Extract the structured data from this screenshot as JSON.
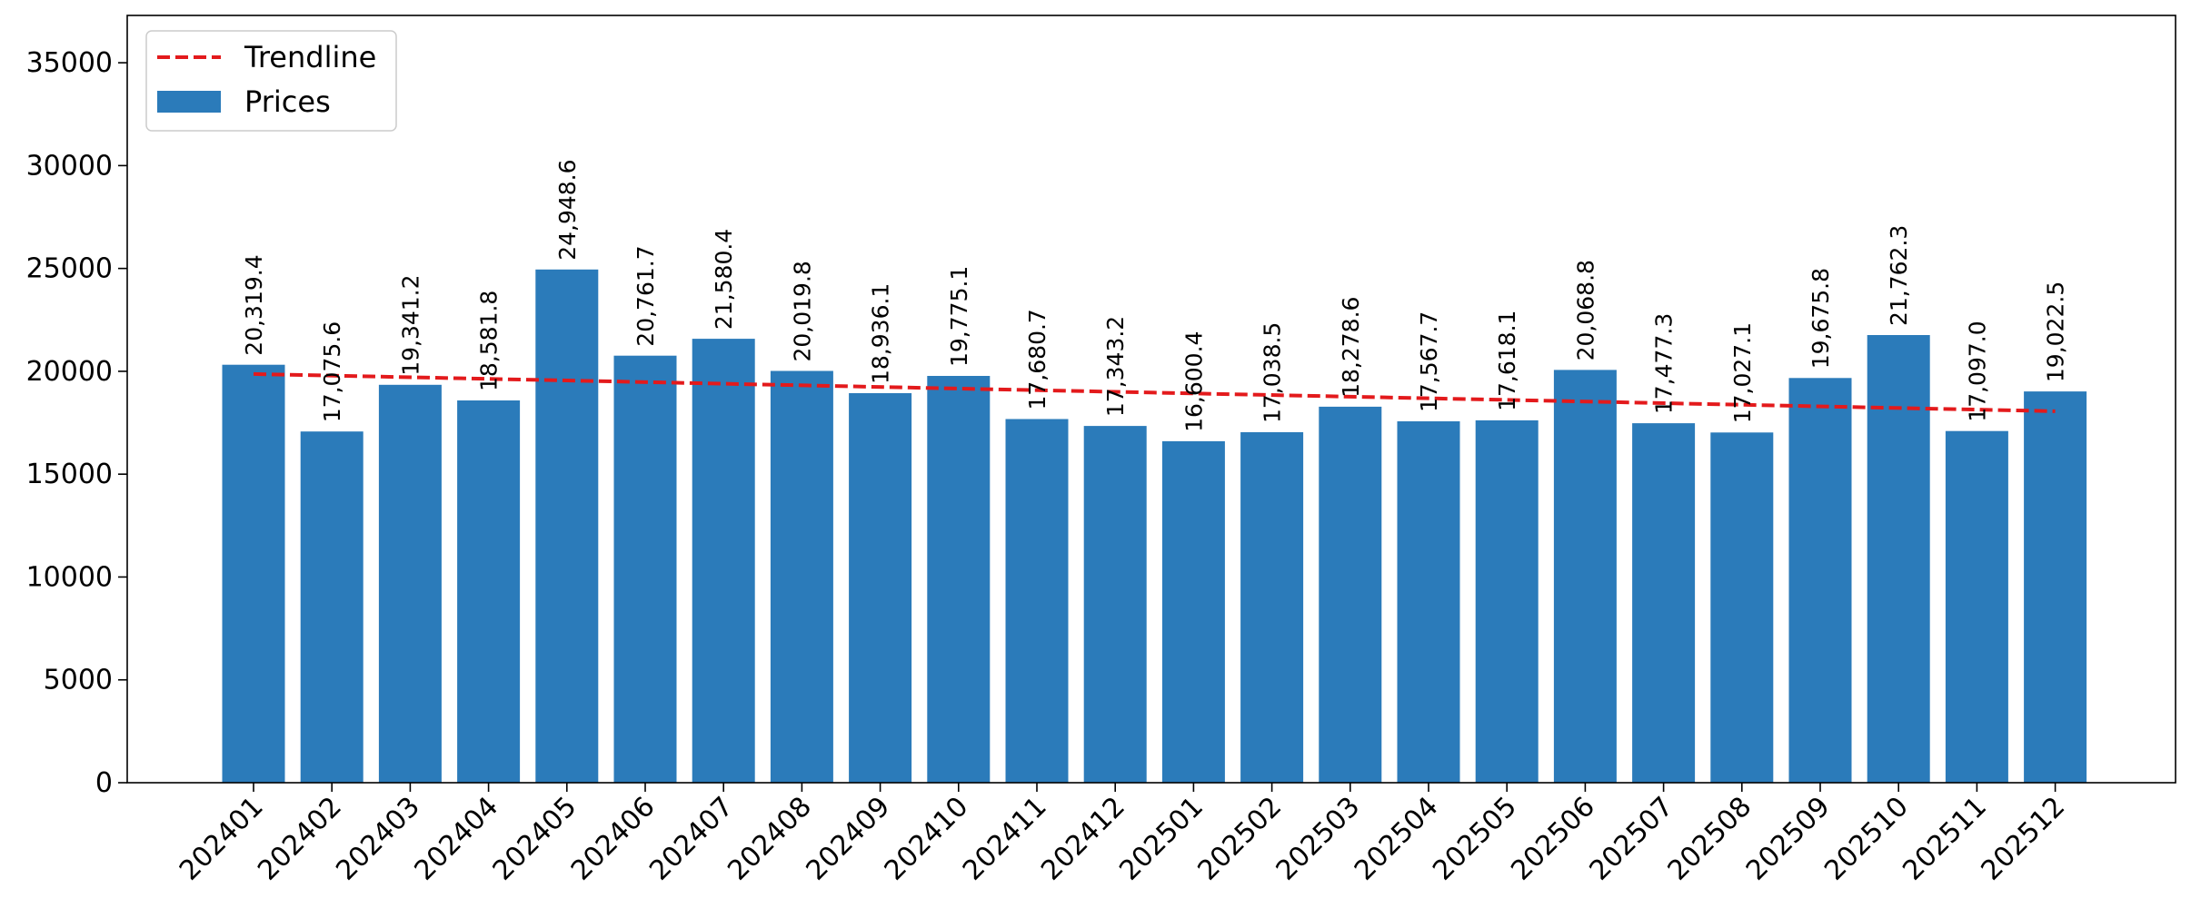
{
  "chart_data": {
    "type": "bar",
    "title": "",
    "xlabel": "",
    "ylabel": "",
    "categories": [
      "202401",
      "202402",
      "202403",
      "202404",
      "202405",
      "202406",
      "202407",
      "202408",
      "202409",
      "202410",
      "202411",
      "202412",
      "202501",
      "202502",
      "202503",
      "202504",
      "202505",
      "202506",
      "202507",
      "202508",
      "202509",
      "202510",
      "202511",
      "202512"
    ],
    "series": [
      {
        "name": "Prices",
        "color": "#2b7bba",
        "values": [
          20319.4,
          17075.6,
          19341.2,
          18581.8,
          24948.6,
          20761.7,
          21580.4,
          20019.8,
          18936.1,
          19775.1,
          17680.7,
          17343.2,
          16600.4,
          17038.5,
          18278.6,
          17567.7,
          17618.1,
          20068.8,
          17477.3,
          17027.1,
          19675.8,
          21762.3,
          17097.0,
          19022.5
        ],
        "data_labels": [
          "20,319.4",
          "17,075.6",
          "19,341.2",
          "18,581.8",
          "24,948.6",
          "20,761.7",
          "21,580.4",
          "20,019.8",
          "18,936.1",
          "19,775.1",
          "17,680.7",
          "17,343.2",
          "16,600.4",
          "17,038.5",
          "18,278.6",
          "17,567.7",
          "17,618.1",
          "20,068.8",
          "17,477.3",
          "17,027.1",
          "19,675.8",
          "21,762.3",
          "17,097.0",
          "19,022.5"
        ]
      }
    ],
    "trendline": {
      "name": "Trendline",
      "color": "#e31a1c",
      "style": "dashed",
      "start": 19870,
      "end": 18060
    },
    "ylim": [
      0,
      37300
    ],
    "yticks": [
      0,
      5000,
      10000,
      15000,
      20000,
      25000,
      30000,
      35000
    ],
    "ytick_labels": [
      "0",
      "5000",
      "10000",
      "15000",
      "20000",
      "25000",
      "30000",
      "35000"
    ],
    "xtick_rotation": 45,
    "legend": {
      "position": "top-left",
      "items": [
        {
          "label": "Trendline",
          "kind": "dashed-line",
          "color": "#e31a1c"
        },
        {
          "label": "Prices",
          "kind": "patch",
          "color": "#2b7bba"
        }
      ]
    },
    "grid": false
  }
}
